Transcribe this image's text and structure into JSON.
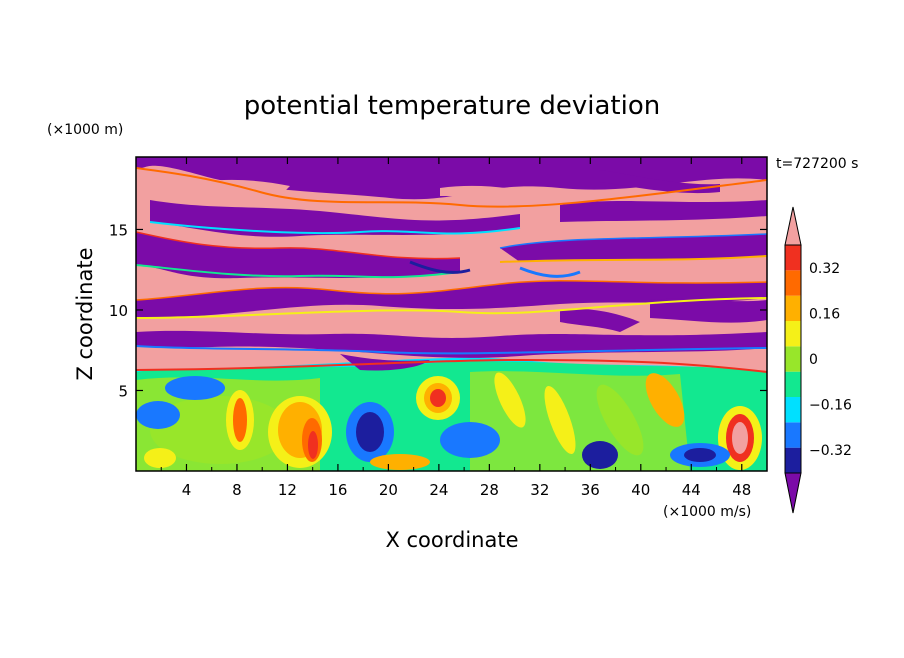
{
  "chart_data": {
    "type": "heatmap",
    "title": "potential temperature deviation",
    "xlabel": "X coordinate",
    "ylabel": "Z coordinate",
    "x_unit": "(×1000 m/s)",
    "y_unit": "(×1000 m)",
    "time_label": "t=727200 s",
    "xlim": [
      0,
      50
    ],
    "ylim": [
      0,
      19.5
    ],
    "x_ticks": [
      4,
      8,
      12,
      16,
      20,
      24,
      28,
      32,
      36,
      40,
      44,
      48
    ],
    "y_ticks": [
      5,
      10,
      15
    ],
    "colorbar": {
      "levels": [
        -0.48,
        -0.4,
        -0.32,
        -0.24,
        -0.16,
        -0.08,
        0,
        0.08,
        0.16,
        0.24,
        0.32,
        0.4
      ],
      "tick_labels": [
        "0.32",
        "0.16",
        "0",
        "−0.16",
        "−0.32"
      ],
      "tick_values": [
        0.32,
        0.16,
        0,
        -0.16,
        -0.32
      ],
      "colors": [
        "#7b0ba8",
        "#1c1e9e",
        "#1978ff",
        "#00e0ff",
        "#12e890",
        "#98e62a",
        "#f5f018",
        "#ffb000",
        "#ff6a00",
        "#f03020",
        "#f2a0a0"
      ],
      "extend": "both"
    }
  }
}
